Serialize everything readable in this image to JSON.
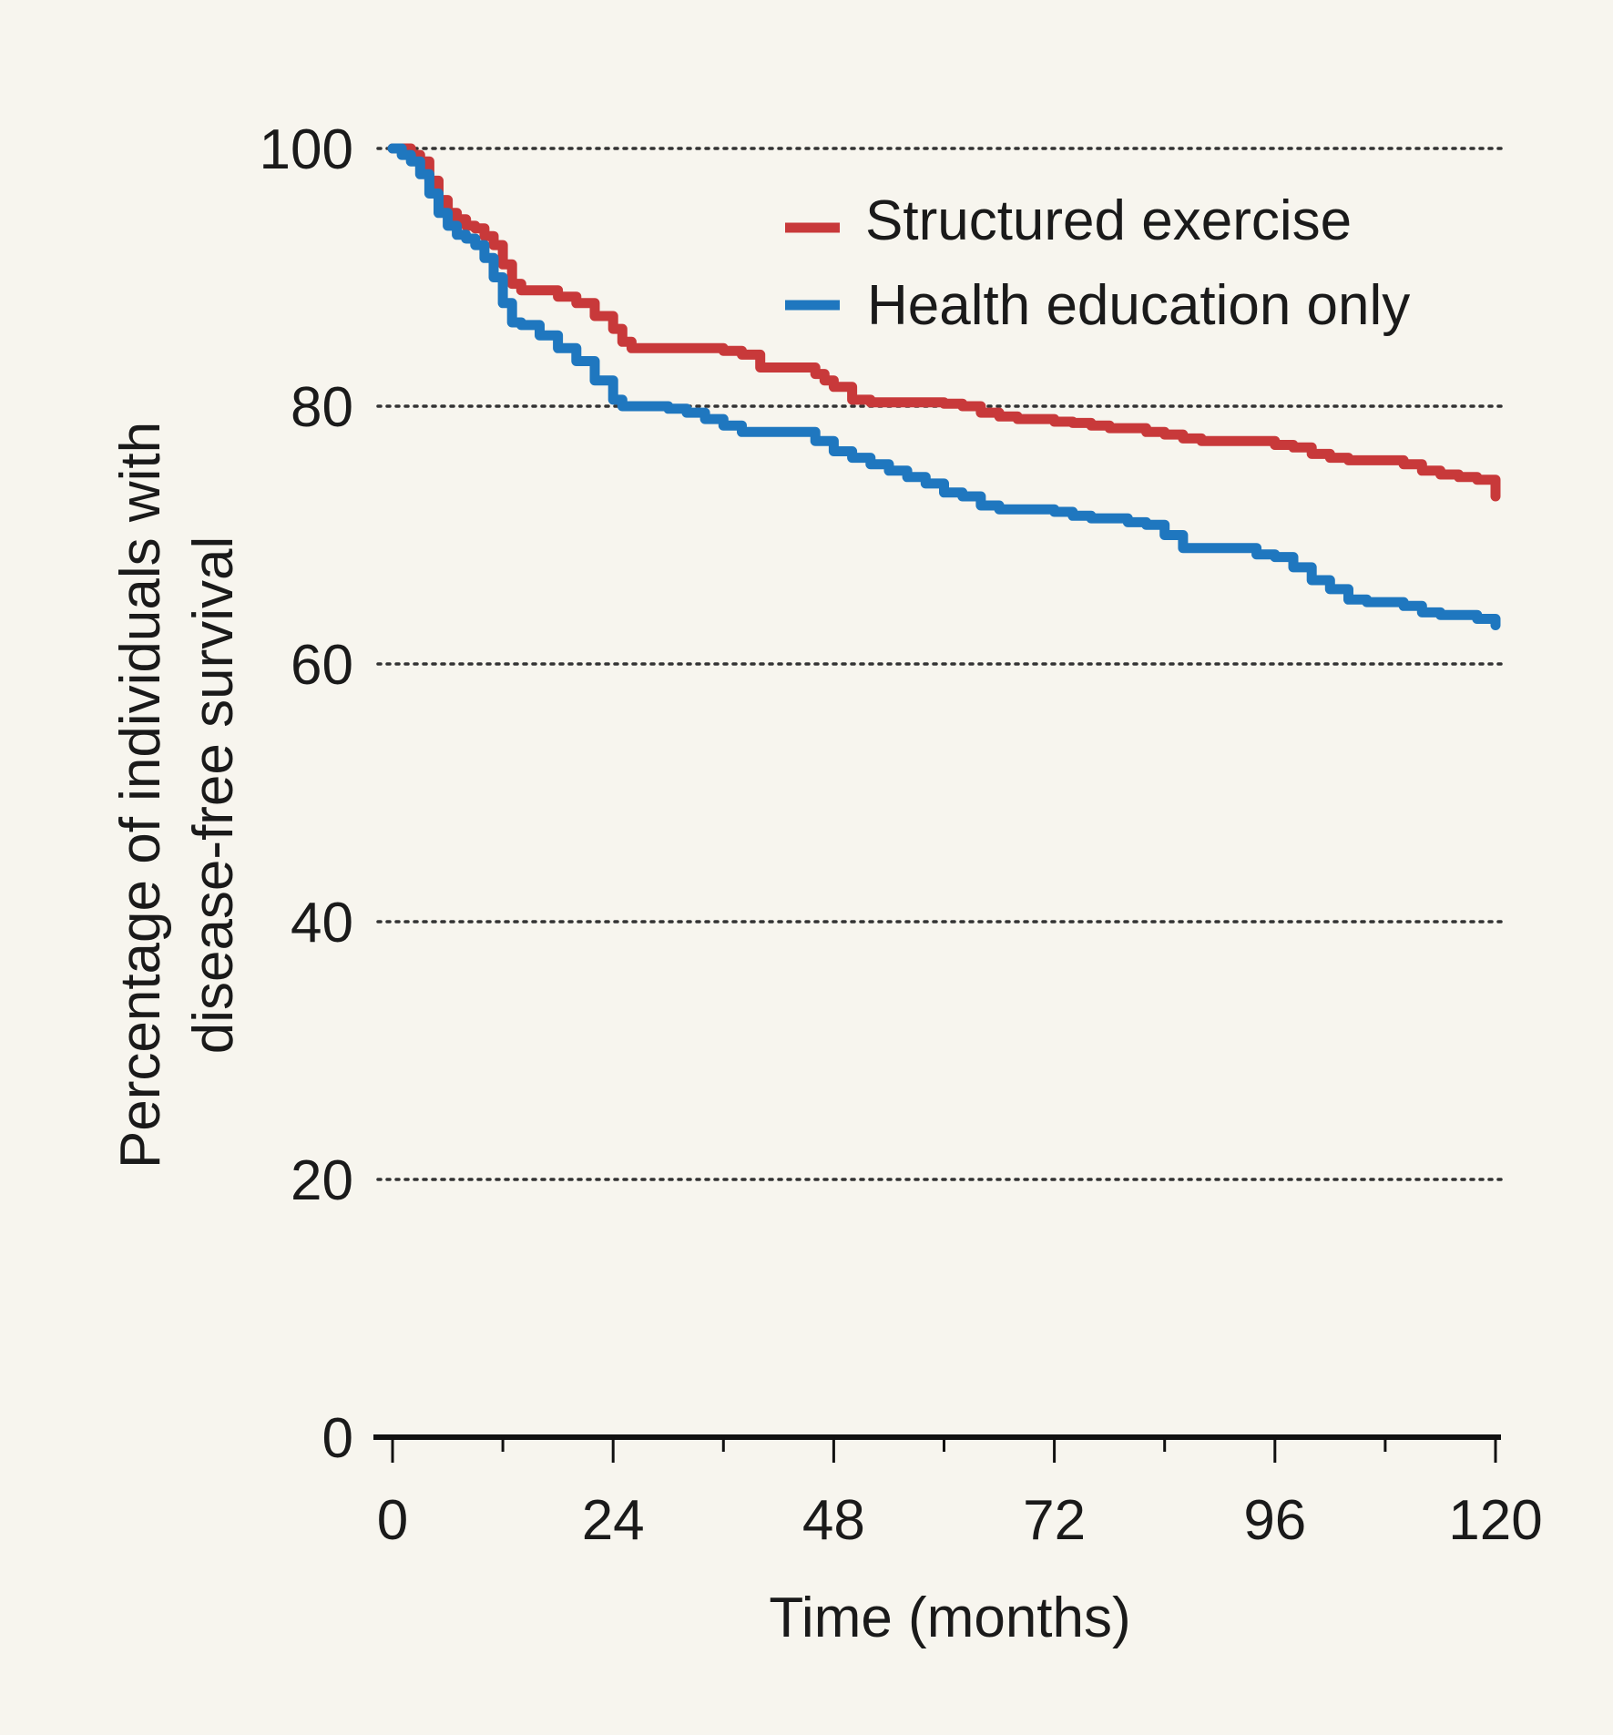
{
  "chart_data": {
    "type": "line",
    "title": "",
    "xlabel": "Time (months)",
    "ylabel_lines": [
      "Percentage of individuals with",
      "disease-free survival"
    ],
    "xlim": [
      0,
      120
    ],
    "ylim": [
      0,
      100
    ],
    "x_ticks": [
      0,
      24,
      48,
      72,
      96,
      120
    ],
    "x_minor_ticks": [
      12,
      36,
      60,
      84,
      108
    ],
    "y_ticks": [
      0,
      20,
      40,
      60,
      80,
      100
    ],
    "gridlines": "horizontal dotted",
    "legend_position": "top-right",
    "background_color": "#f7f5ee",
    "series": [
      {
        "name": "Structured exercise",
        "color": "#c8393a",
        "x": [
          0,
          1,
          2,
          3,
          4,
          5,
          6,
          7,
          8,
          9,
          10,
          11,
          12,
          13,
          14,
          16,
          18,
          20,
          22,
          24,
          25,
          26,
          28,
          30,
          32,
          34,
          36,
          38,
          40,
          42,
          44,
          46,
          47,
          48,
          50,
          52,
          54,
          56,
          58,
          60,
          62,
          64,
          66,
          68,
          70,
          72,
          74,
          76,
          78,
          80,
          82,
          84,
          86,
          88,
          90,
          92,
          94,
          96,
          98,
          100,
          102,
          104,
          106,
          108,
          110,
          112,
          114,
          116,
          118,
          120,
          120
        ],
        "y": [
          100,
          100,
          99.5,
          99,
          97.5,
          96,
          95,
          94.5,
          94,
          93.8,
          93.2,
          92.5,
          91,
          89.5,
          89,
          89,
          88.5,
          88,
          87,
          86,
          85,
          84.5,
          84.5,
          84.5,
          84.5,
          84.5,
          84.3,
          84,
          83,
          83,
          83,
          82.5,
          82,
          81.5,
          80.5,
          80.3,
          80.3,
          80.3,
          80.3,
          80.2,
          80,
          79.5,
          79.2,
          79,
          79,
          78.8,
          78.7,
          78.5,
          78.3,
          78.3,
          78,
          77.8,
          77.5,
          77.3,
          77.3,
          77.3,
          77.3,
          77,
          76.8,
          76.3,
          76,
          75.8,
          75.8,
          75.8,
          75.5,
          75,
          74.7,
          74.5,
          74.3,
          74.3,
          73
        ]
      },
      {
        "name": "Health education only",
        "color": "#1f77bf",
        "x": [
          0,
          1,
          2,
          3,
          4,
          5,
          6,
          7,
          8,
          9,
          10,
          11,
          12,
          13,
          14,
          16,
          18,
          20,
          22,
          24,
          25,
          26,
          28,
          30,
          32,
          34,
          36,
          38,
          40,
          42,
          44,
          46,
          48,
          50,
          52,
          54,
          56,
          58,
          60,
          62,
          64,
          66,
          68,
          70,
          72,
          74,
          76,
          78,
          80,
          82,
          84,
          86,
          88,
          90,
          92,
          94,
          96,
          98,
          100,
          102,
          104,
          106,
          108,
          110,
          112,
          114,
          116,
          118,
          120
        ],
        "y": [
          100,
          99.5,
          99,
          98,
          96.5,
          95,
          94,
          93.3,
          93,
          92.5,
          91.5,
          90,
          88,
          86.5,
          86.3,
          85.5,
          84.5,
          83.5,
          82,
          80.5,
          80,
          80,
          80,
          79.8,
          79.5,
          79,
          78.5,
          78,
          78,
          78,
          78,
          77.3,
          76.5,
          76,
          75.5,
          75,
          74.5,
          74,
          73.3,
          73,
          72.3,
          72,
          72,
          72,
          71.8,
          71.5,
          71.3,
          71.3,
          71,
          70.8,
          70,
          69,
          69,
          69,
          69,
          68.5,
          68.3,
          67.5,
          66.5,
          65.8,
          65,
          64.8,
          64.8,
          64.5,
          64,
          63.8,
          63.8,
          63.5,
          63
        ]
      }
    ]
  }
}
